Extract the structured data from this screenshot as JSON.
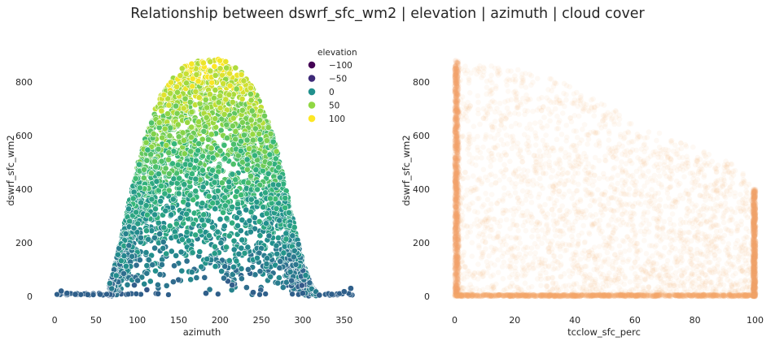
{
  "figure": {
    "suptitle": "Relationship between dswrf_sfc_wm2 | elevation | azimuth | cloud cover"
  },
  "chart_data": [
    {
      "type": "scatter",
      "title": "",
      "xlabel": "azimuth",
      "ylabel": "dswrf_sfc_wm2",
      "xlim": [
        -5,
        365
      ],
      "ylim": [
        -45,
        930
      ],
      "xticks": [
        0,
        50,
        100,
        150,
        200,
        250,
        300,
        350
      ],
      "yticks": [
        0,
        200,
        400,
        600,
        800
      ],
      "grid": false,
      "hue": "elevation",
      "legend": {
        "title": "elevation",
        "placement": "top-right",
        "entries": [
          {
            "label": "−100",
            "value": -100,
            "color": "#440154"
          },
          {
            "label": "−50",
            "value": -50,
            "color": "#3e2a78"
          },
          {
            "label": "0",
            "value": 0,
            "color": "#21908d"
          },
          {
            "label": "50",
            "value": 50,
            "color": "#90d743"
          },
          {
            "label": "100",
            "value": 100,
            "color": "#fde725"
          }
        ]
      },
      "envelope": {
        "azimuth": [
          62,
          70,
          80,
          90,
          100,
          110,
          120,
          130,
          140,
          150,
          160,
          170,
          180,
          190,
          200,
          210,
          220,
          230,
          240,
          250,
          260,
          270,
          280,
          290,
          300,
          310,
          320
        ],
        "dswrf_max": [
          5,
          80,
          210,
          360,
          490,
          600,
          690,
          760,
          810,
          845,
          868,
          878,
          882,
          888,
          885,
          875,
          855,
          825,
          780,
          720,
          640,
          530,
          400,
          260,
          130,
          40,
          5
        ]
      },
      "night_points": [
        {
          "azimuth": 8,
          "dswrf": 20
        },
        {
          "azimuth": 15,
          "dswrf": 12
        },
        {
          "azimuth": 25,
          "dswrf": 8
        },
        {
          "azimuth": 40,
          "dswrf": 7
        },
        {
          "azimuth": 55,
          "dswrf": 8
        },
        {
          "azimuth": 125,
          "dswrf": 10
        },
        {
          "azimuth": 183,
          "dswrf": 12
        },
        {
          "azimuth": 240,
          "dswrf": 15
        },
        {
          "azimuth": 300,
          "dswrf": 12
        },
        {
          "azimuth": 320,
          "dswrf": 5
        },
        {
          "azimuth": 335,
          "dswrf": 8
        },
        {
          "azimuth": 350,
          "dswrf": 18
        },
        {
          "azimuth": 358,
          "dswrf": 30
        }
      ]
    },
    {
      "type": "scatter",
      "title": "",
      "xlabel": "tcclow_sfc_perc",
      "ylabel": "dswrf_sfc_wm2",
      "xlim": [
        -1.5,
        101.5
      ],
      "ylim": [
        -45,
        930
      ],
      "xticks": [
        0,
        20,
        40,
        60,
        80,
        100
      ],
      "yticks": [
        0,
        200,
        400,
        600,
        800
      ],
      "grid": false,
      "color": "#f4a46a",
      "upper_bound": {
        "tcclow": [
          0,
          10,
          20,
          30,
          40,
          50,
          60,
          70,
          80,
          90,
          95,
          100
        ],
        "dswrf_max": [
          880,
          870,
          850,
          820,
          780,
          720,
          650,
          600,
          560,
          510,
          480,
          400
        ]
      }
    }
  ]
}
